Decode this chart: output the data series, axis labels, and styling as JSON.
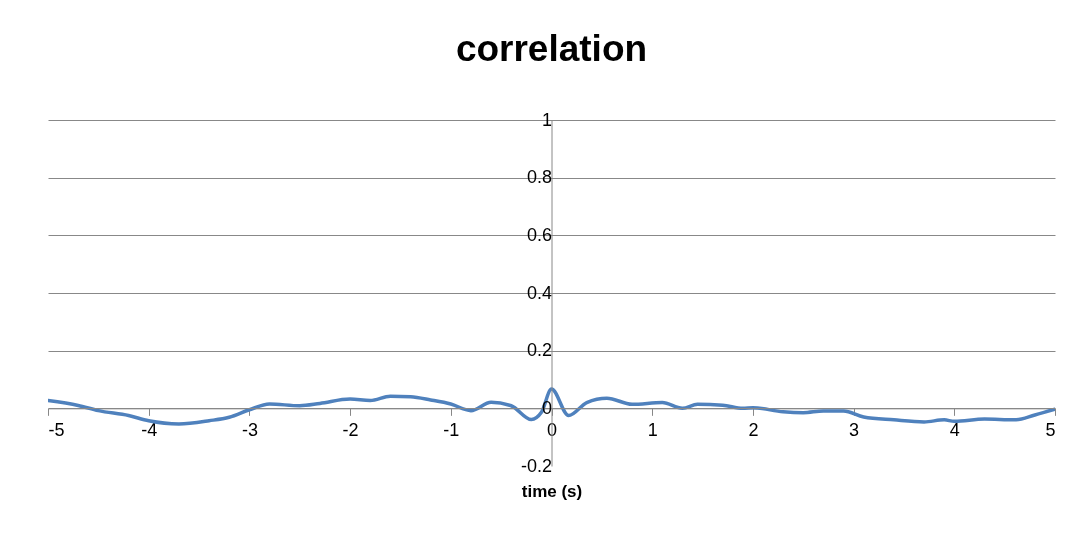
{
  "chart_data": {
    "type": "line",
    "title": "correlation",
    "xlabel": "time (s)",
    "x": [
      -5,
      -4.7,
      -4.5,
      -4.2,
      -4,
      -3.7,
      -3.4,
      -3.2,
      -3,
      -2.8,
      -2.5,
      -2.3,
      -2,
      -1.8,
      -1.6,
      -1.4,
      -1.2,
      -1,
      -0.8,
      -0.6,
      -0.4,
      -0.2,
      -0.1,
      0,
      0.17,
      0.35,
      0.55,
      0.8,
      1.1,
      1.3,
      1.45,
      1.7,
      1.9,
      2,
      2.3,
      2.5,
      2.7,
      2.9,
      3.1,
      3.4,
      3.7,
      3.9,
      4,
      4.3,
      4.6,
      4.8,
      5
    ],
    "series": [
      {
        "color": "#4f81bd",
        "values": [
          0.027,
          0.01,
          -0.008,
          -0.025,
          -0.043,
          -0.054,
          -0.043,
          -0.031,
          -0.005,
          0.015,
          0.009,
          0.017,
          0.032,
          0.027,
          0.042,
          0.04,
          0.029,
          0.015,
          -0.008,
          0.021,
          0.009,
          -0.039,
          -0.014,
          0.067,
          -0.025,
          0.02,
          0.035,
          0.014,
          0.02,
          0,
          0.014,
          0.011,
          0,
          0.002,
          -0.012,
          -0.015,
          -0.009,
          -0.009,
          -0.03,
          -0.04,
          -0.047,
          -0.04,
          -0.045,
          -0.037,
          -0.04,
          -0.023,
          -0.003
        ]
      }
    ],
    "xlim": [
      -5,
      5
    ],
    "xticks": [
      -5,
      -4,
      -3,
      -2,
      -1,
      0,
      1,
      2,
      3,
      4,
      5
    ],
    "ylim": [
      -0.2,
      1
    ],
    "yticks": [
      -0.2,
      0,
      0.2,
      0.4,
      0.6,
      0.8,
      1
    ],
    "grid": "y",
    "marker": "none",
    "line_style": "solid"
  }
}
